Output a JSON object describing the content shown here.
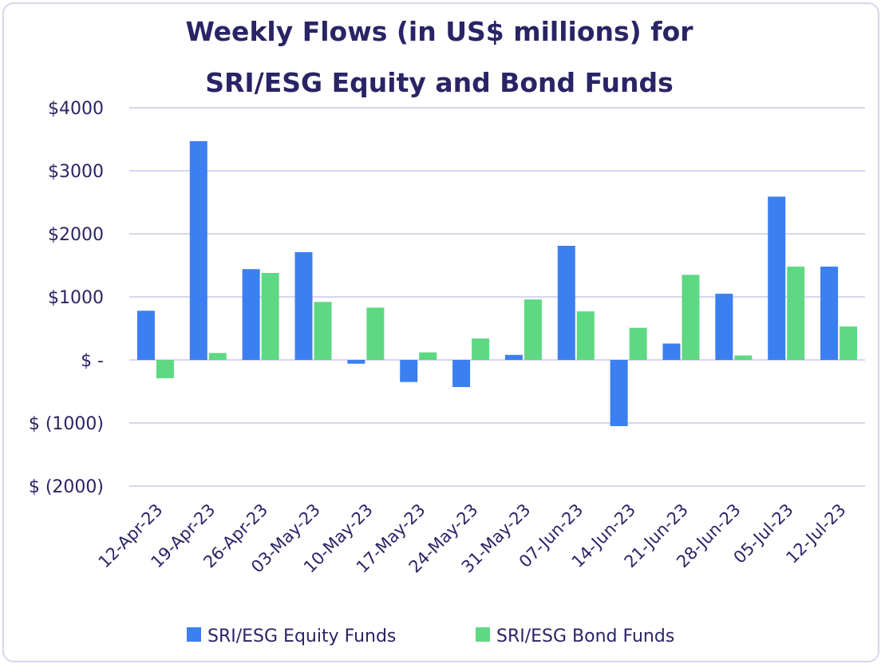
{
  "chart_data": {
    "type": "bar",
    "title_lines": [
      "Weekly Flows (in US$ millions) for",
      "SRI/ESG Equity and Bond Funds"
    ],
    "categories": [
      "12-Apr-23",
      "19-Apr-23",
      "26-Apr-23",
      "03-May-23",
      "10-May-23",
      "17-May-23",
      "24-May-23",
      "31-May-23",
      "07-Jun-23",
      "14-Jun-23",
      "21-Jun-23",
      "28-Jun-23",
      "05-Jul-23",
      "12-Jul-23"
    ],
    "series": [
      {
        "name": "SRI/ESG Equity Funds",
        "color": "#3b7ff0",
        "values": [
          780,
          3470,
          1440,
          1710,
          -60,
          -350,
          -430,
          80,
          1810,
          -1050,
          260,
          1050,
          2590,
          1480
        ]
      },
      {
        "name": "SRI/ESG Bond Funds",
        "color": "#5ed882",
        "values": [
          -290,
          110,
          1380,
          920,
          830,
          120,
          340,
          960,
          770,
          510,
          1350,
          70,
          1480,
          530
        ]
      }
    ],
    "y_ticks": [
      {
        "value": 4000,
        "label": "$4000"
      },
      {
        "value": 3000,
        "label": "$3000"
      },
      {
        "value": 2000,
        "label": "$2000"
      },
      {
        "value": 1000,
        "label": "$1000"
      },
      {
        "value": 0,
        "label": "$ -"
      },
      {
        "value": -1000,
        "label": "$ (1000)"
      },
      {
        "value": -2000,
        "label": "$ (2000)"
      }
    ],
    "ylim": [
      -2000,
      4000
    ],
    "grid": true,
    "legend_position": "bottom",
    "gridline_color": "#d8d6f0",
    "text_color": "#2a2466"
  }
}
